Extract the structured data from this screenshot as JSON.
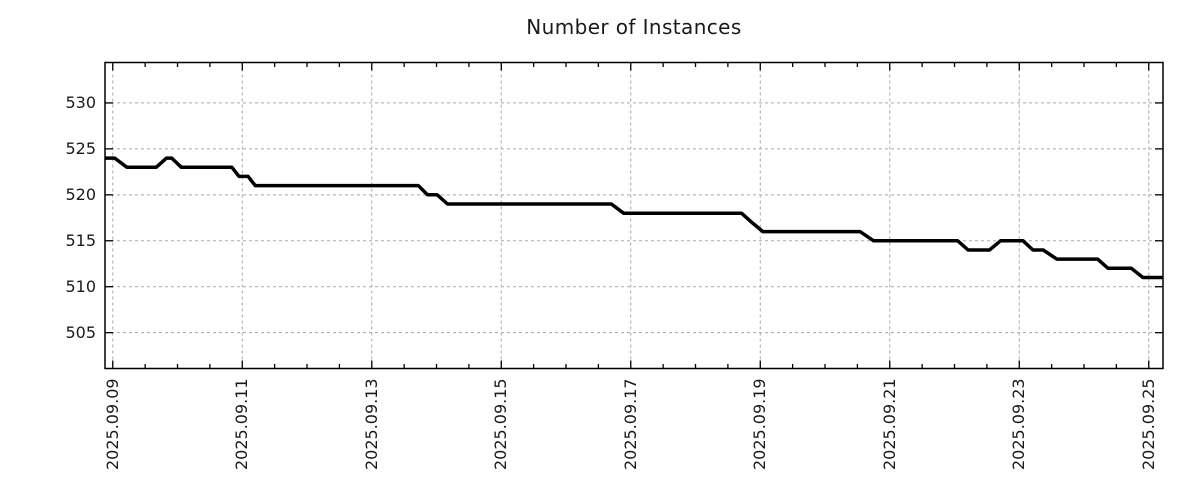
{
  "page": {
    "background": "#ffffff"
  },
  "chart_data": {
    "type": "line",
    "title": "Number of Instances",
    "x_unit": "days since 2025.09.09 00:00",
    "xlim_days": [
      -0.12,
      16.22
    ],
    "ylim": [
      501.1,
      534.4
    ],
    "y_ticks": [
      505,
      510,
      515,
      520,
      525,
      530
    ],
    "x_major_ticks": [
      {
        "day": 0,
        "label": "2025.09.09"
      },
      {
        "day": 2,
        "label": "2025.09.11"
      },
      {
        "day": 4,
        "label": "2025.09.13"
      },
      {
        "day": 6,
        "label": "2025.09.15"
      },
      {
        "day": 8,
        "label": "2025.09.17"
      },
      {
        "day": 10,
        "label": "2025.09.19"
      },
      {
        "day": 12,
        "label": "2025.09.21"
      },
      {
        "day": 14,
        "label": "2025.09.23"
      },
      {
        "day": 16,
        "label": "2025.09.25"
      }
    ],
    "x_minor_tick_step_days": 0.5,
    "grid": {
      "show": true,
      "color": "#a8a8a8",
      "dash": "3,3"
    },
    "frame_color": "#000000",
    "legend": "none",
    "series": [
      {
        "name": "instances",
        "color": "#000000",
        "points": [
          [
            -0.12,
            524
          ],
          [
            0.03,
            524
          ],
          [
            0.22,
            523
          ],
          [
            0.67,
            523
          ],
          [
            0.83,
            524
          ],
          [
            0.91,
            524
          ],
          [
            1.06,
            523
          ],
          [
            1.84,
            523
          ],
          [
            1.95,
            522
          ],
          [
            2.09,
            522
          ],
          [
            2.2,
            521
          ],
          [
            4.72,
            521
          ],
          [
            4.86,
            520
          ],
          [
            5.01,
            520
          ],
          [
            5.17,
            519
          ],
          [
            7.7,
            519
          ],
          [
            7.89,
            518
          ],
          [
            9.71,
            518
          ],
          [
            9.87,
            517
          ],
          [
            10.04,
            516
          ],
          [
            11.54,
            516
          ],
          [
            11.75,
            515
          ],
          [
            13.05,
            515
          ],
          [
            13.21,
            514
          ],
          [
            13.54,
            514
          ],
          [
            13.71,
            515
          ],
          [
            14.06,
            515
          ],
          [
            14.21,
            514
          ],
          [
            14.37,
            514
          ],
          [
            14.58,
            513
          ],
          [
            15.21,
            513
          ],
          [
            15.37,
            512
          ],
          [
            15.73,
            512
          ],
          [
            15.91,
            511
          ],
          [
            16.22,
            511
          ]
        ]
      }
    ]
  }
}
